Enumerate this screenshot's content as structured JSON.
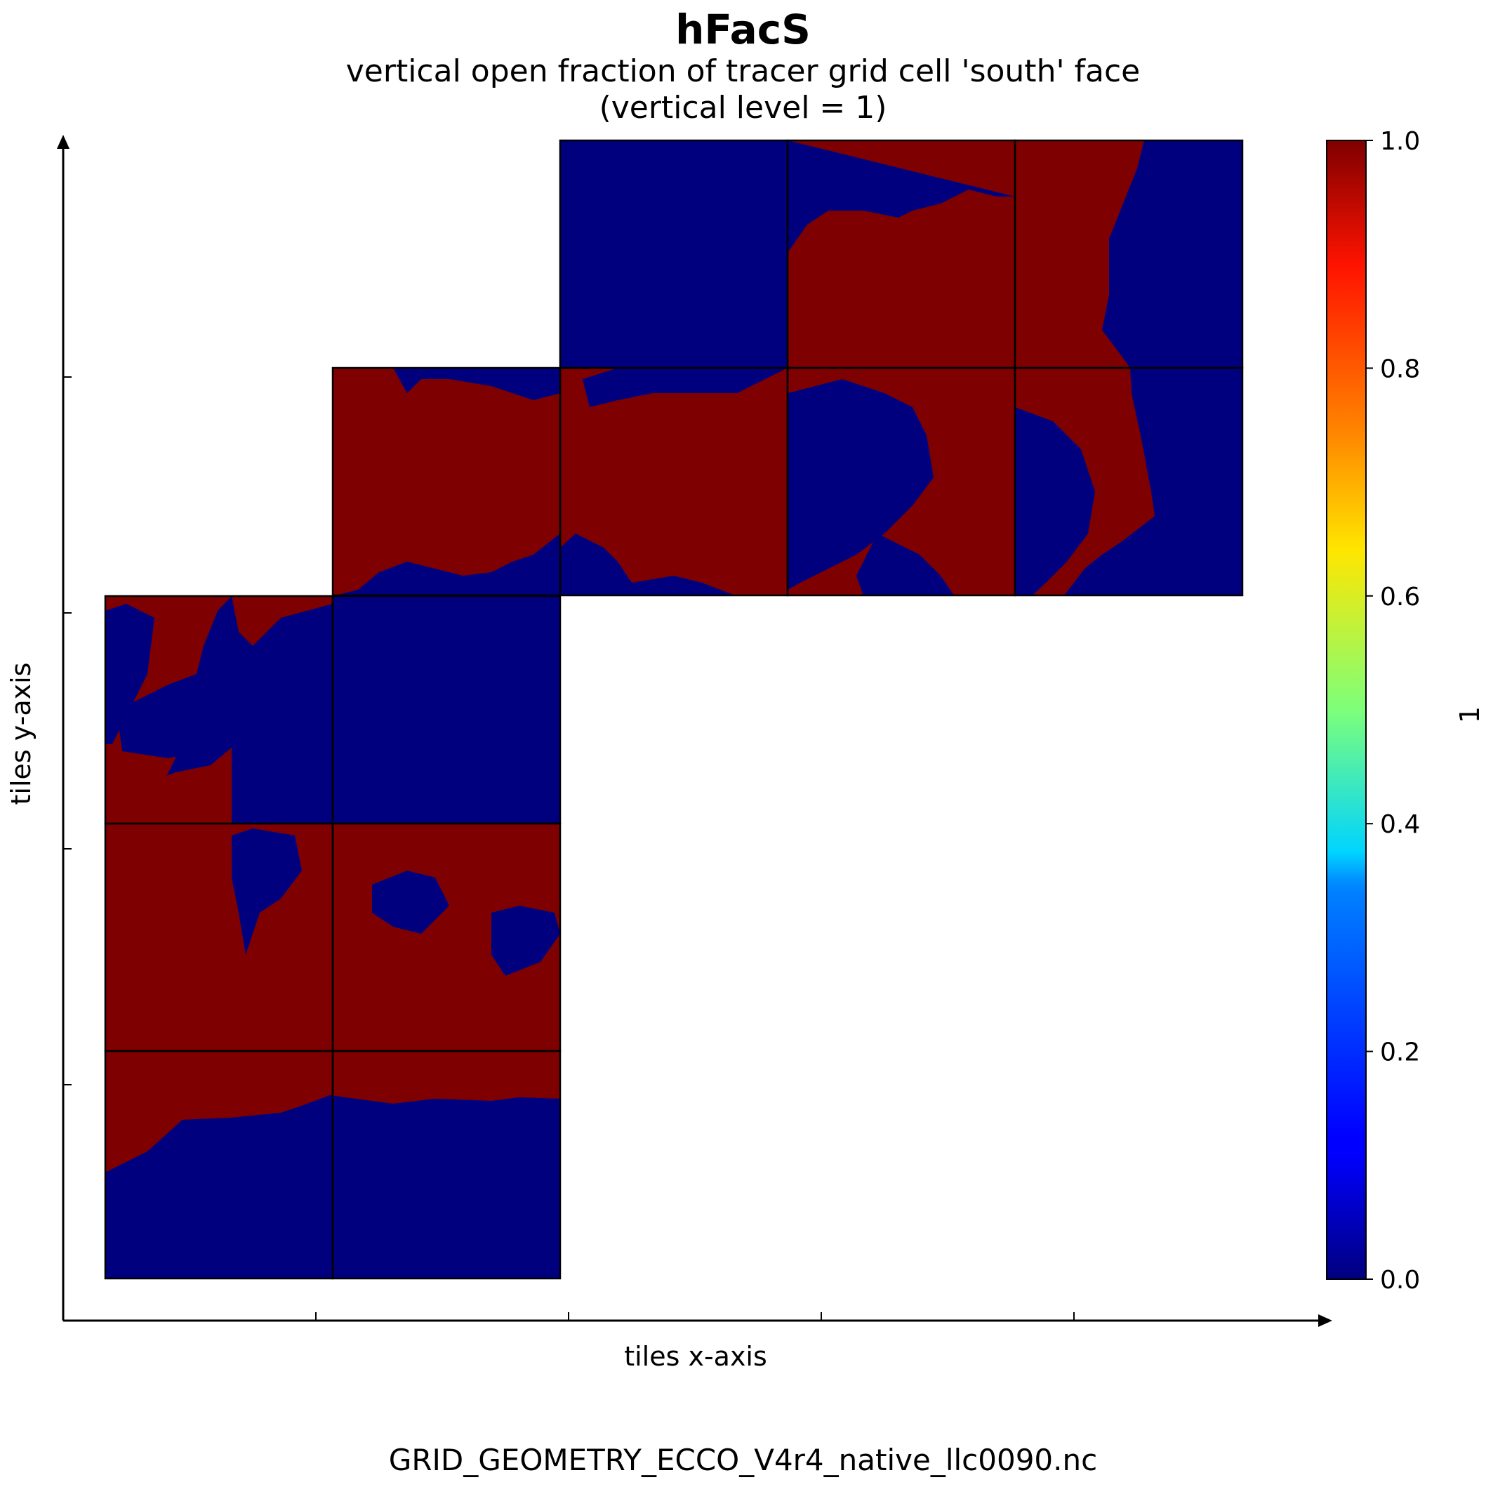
{
  "chart_data": {
    "type": "heatmap",
    "title": "hFacS",
    "subtitle": [
      "vertical open fraction of tracer grid cell 'south' face",
      "(vertical level = 1)"
    ],
    "xlabel": "tiles x-axis",
    "ylabel": "tiles y-axis",
    "colorbar": {
      "label": "1",
      "colormap": "jet",
      "range": [
        0.0,
        1.0
      ],
      "ticks": [
        "0.0",
        "0.2",
        "0.4",
        "0.6",
        "0.8",
        "1.0"
      ],
      "tick_values": [
        0.0,
        0.2,
        0.4,
        0.6,
        0.8,
        1.0
      ]
    },
    "values_present": [
      0.0,
      1.0
    ],
    "colors": {
      "ocean_open": "#7f0000",
      "land_closed": "#00007f"
    },
    "grid_tiles": "13 tiles (llc90 native grid), 3x3 blocks per tile row/column in the lower-left and upper-right faces",
    "legend": "colorbar-right",
    "grid": false
  },
  "footer": "GRID_GEOMETRY_ECCO_V4r4_native_llc0090.nc"
}
